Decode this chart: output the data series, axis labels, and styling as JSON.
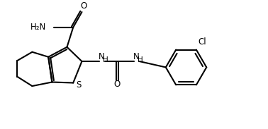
{
  "background": "#ffffff",
  "line_color": "#000000",
  "line_width": 1.5,
  "fig_size": [
    3.78,
    1.83
  ],
  "dpi": 100,
  "xlim": [
    0,
    10
  ],
  "ylim": [
    0,
    5
  ]
}
